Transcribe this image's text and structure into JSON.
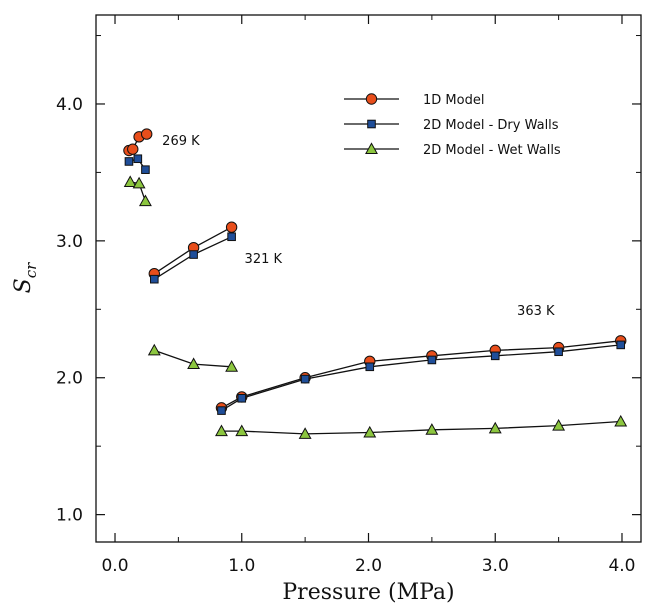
{
  "chart_data": {
    "type": "line",
    "title": "",
    "xlabel": "Pressure (MPa)",
    "ylabel_main": "S",
    "ylabel_sub": "cr",
    "xlim": [
      -0.15,
      4.15
    ],
    "ylim": [
      0.8,
      4.65
    ],
    "x_ticks": [
      0.0,
      1.0,
      2.0,
      3.0,
      4.0
    ],
    "x_tick_labels": [
      "0.0",
      "1.0",
      "2.0",
      "3.0",
      "4.0"
    ],
    "y_ticks": [
      1.0,
      2.0,
      3.0,
      4.0
    ],
    "y_tick_labels": [
      "1.0",
      "2.0",
      "3.0",
      "4.0"
    ],
    "grid": false,
    "legend_position": "top-right",
    "series": [
      {
        "name": "1D Model",
        "marker": "circle",
        "color": "#e84e1b",
        "segments": [
          [
            [
              0.11,
              3.66
            ],
            [
              0.14,
              3.67
            ],
            [
              0.19,
              3.76
            ],
            [
              0.25,
              3.78
            ]
          ],
          [
            [
              0.31,
              2.76
            ],
            [
              0.62,
              2.95
            ],
            [
              0.92,
              3.1
            ]
          ],
          [
            [
              0.84,
              1.78
            ],
            [
              1.0,
              1.86
            ],
            [
              1.5,
              2.0
            ],
            [
              2.01,
              2.12
            ],
            [
              2.5,
              2.16
            ],
            [
              3.0,
              2.2
            ],
            [
              3.5,
              2.22
            ],
            [
              3.99,
              2.27
            ]
          ]
        ]
      },
      {
        "name": "2D Model - Dry Walls",
        "marker": "square",
        "color": "#1f4e99",
        "segments": [
          [
            [
              0.11,
              3.58
            ],
            [
              0.18,
              3.6
            ],
            [
              0.24,
              3.52
            ]
          ],
          [
            [
              0.31,
              2.72
            ],
            [
              0.62,
              2.9
            ],
            [
              0.92,
              3.03
            ]
          ],
          [
            [
              0.84,
              1.76
            ],
            [
              1.0,
              1.85
            ],
            [
              1.5,
              1.99
            ],
            [
              2.01,
              2.08
            ],
            [
              2.5,
              2.13
            ],
            [
              3.0,
              2.16
            ],
            [
              3.5,
              2.19
            ],
            [
              3.99,
              2.24
            ]
          ]
        ]
      },
      {
        "name": "2D Model - Wet Walls",
        "marker": "triangle",
        "color": "#8cc63f",
        "segments": [
          [
            [
              0.12,
              3.43
            ],
            [
              0.19,
              3.42
            ],
            [
              0.24,
              3.29
            ]
          ],
          [
            [
              0.31,
              2.2
            ],
            [
              0.62,
              2.1
            ],
            [
              0.92,
              2.08
            ]
          ],
          [
            [
              0.84,
              1.61
            ],
            [
              1.0,
              1.61
            ],
            [
              1.5,
              1.59
            ],
            [
              2.01,
              1.6
            ],
            [
              2.5,
              1.62
            ],
            [
              3.0,
              1.63
            ],
            [
              3.5,
              1.65
            ],
            [
              3.99,
              1.68
            ]
          ]
        ]
      }
    ],
    "annotations": [
      {
        "text": "269 K",
        "x": 0.52,
        "y": 3.7
      },
      {
        "text": "321 K",
        "x": 1.17,
        "y": 2.84
      },
      {
        "text": "363 K",
        "x": 3.32,
        "y": 2.46
      }
    ]
  }
}
